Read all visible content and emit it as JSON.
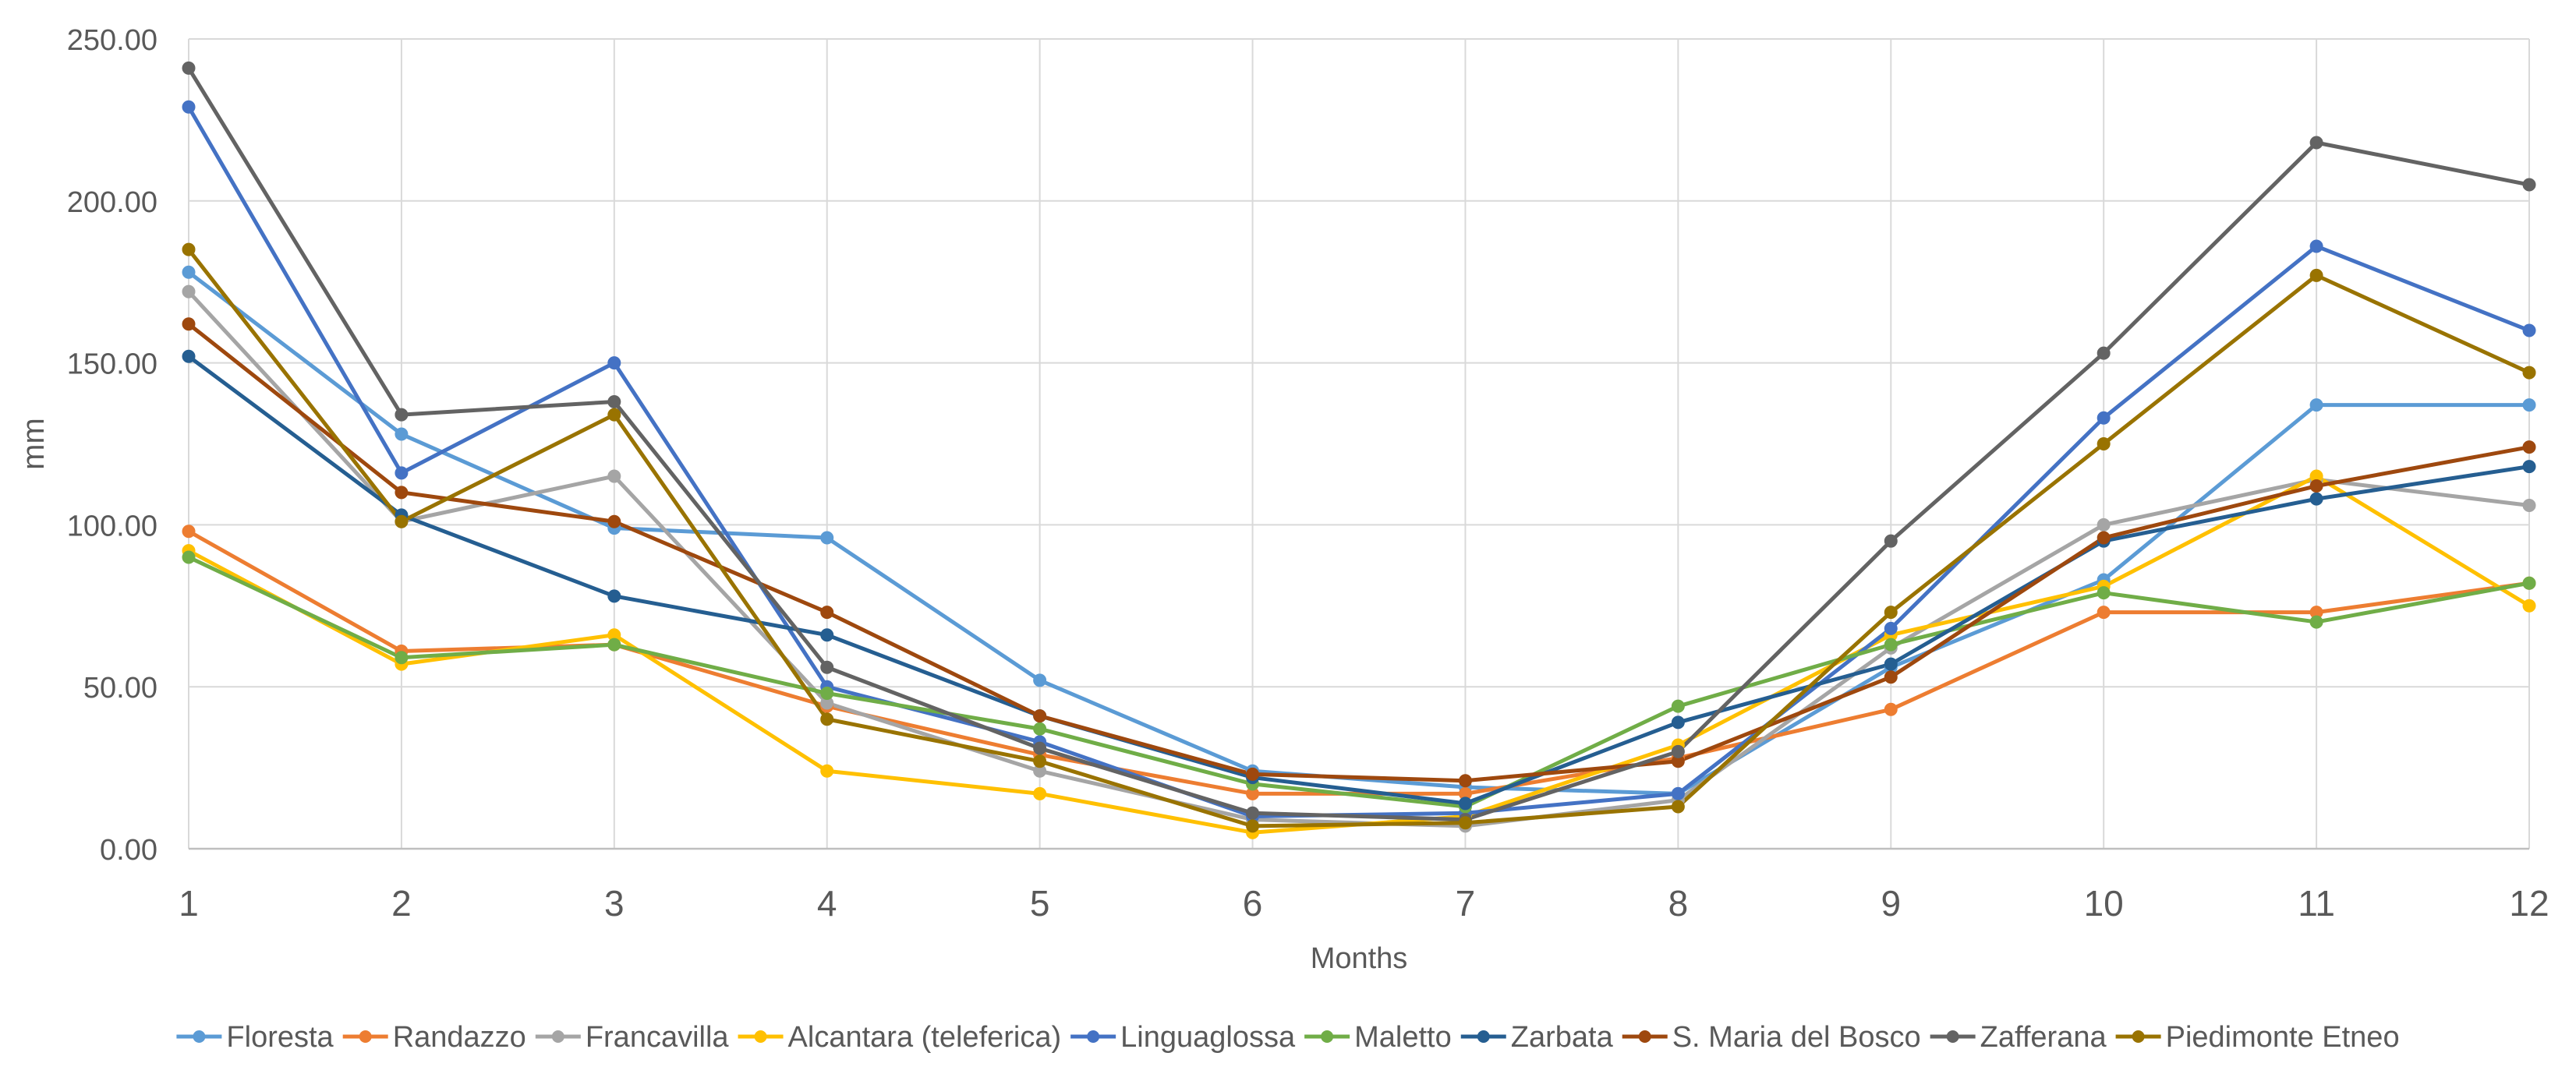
{
  "chart_data": {
    "type": "line",
    "title": "",
    "xlabel": "Months",
    "ylabel": "mm",
    "x": [
      1,
      2,
      3,
      4,
      5,
      6,
      7,
      8,
      9,
      10,
      11,
      12
    ],
    "x_tick_labels": [
      "1",
      "2",
      "3",
      "4",
      "5",
      "6",
      "7",
      "8",
      "9",
      "10",
      "11",
      "12"
    ],
    "y_tick_labels": [
      "0.00",
      "50.00",
      "100.00",
      "150.00",
      "200.00",
      "250.00"
    ],
    "y_ticks": [
      0,
      50,
      100,
      150,
      200,
      250
    ],
    "ylim": [
      0,
      250
    ],
    "grid": true,
    "legend_position": "bottom",
    "series": [
      {
        "name": "Floresta",
        "color": "#5B9BD5",
        "values": [
          178,
          128,
          99,
          96,
          52,
          24,
          19,
          17,
          56,
          83,
          137,
          137
        ]
      },
      {
        "name": "Randazzo",
        "color": "#ED7D31",
        "values": [
          98,
          61,
          63,
          44,
          29,
          17,
          17,
          28,
          43,
          73,
          73,
          82
        ]
      },
      {
        "name": "Francavilla",
        "color": "#A5A5A5",
        "values": [
          172,
          101,
          115,
          45,
          24,
          9,
          7,
          15,
          62,
          100,
          114,
          106
        ]
      },
      {
        "name": "Alcantara (teleferica)",
        "color": "#FFC000",
        "values": [
          92,
          57,
          66,
          24,
          17,
          5,
          10,
          32,
          66,
          81,
          115,
          75
        ]
      },
      {
        "name": "Linguaglossa",
        "color": "#4472C4",
        "values": [
          229,
          116,
          150,
          50,
          33,
          10,
          11,
          17,
          68,
          133,
          186,
          160
        ]
      },
      {
        "name": "Maletto",
        "color": "#70AD47",
        "values": [
          90,
          59,
          63,
          48,
          37,
          20,
          13,
          44,
          63,
          79,
          70,
          82
        ]
      },
      {
        "name": "Zarbata",
        "color": "#255E91",
        "values": [
          152,
          103,
          78,
          66,
          41,
          22,
          14,
          39,
          57,
          95,
          108,
          118
        ]
      },
      {
        "name": "S. Maria del Bosco",
        "color": "#9E480E",
        "values": [
          162,
          110,
          101,
          73,
          41,
          23,
          21,
          27,
          53,
          96,
          112,
          124
        ]
      },
      {
        "name": "Zafferana",
        "color": "#636363",
        "values": [
          241,
          134,
          138,
          56,
          31,
          11,
          9,
          30,
          95,
          153,
          218,
          205
        ]
      },
      {
        "name": "Piedimonte Etneo",
        "color": "#997300",
        "values": [
          185,
          101,
          134,
          40,
          27,
          7,
          8,
          13,
          73,
          125,
          177,
          147
        ]
      }
    ]
  }
}
